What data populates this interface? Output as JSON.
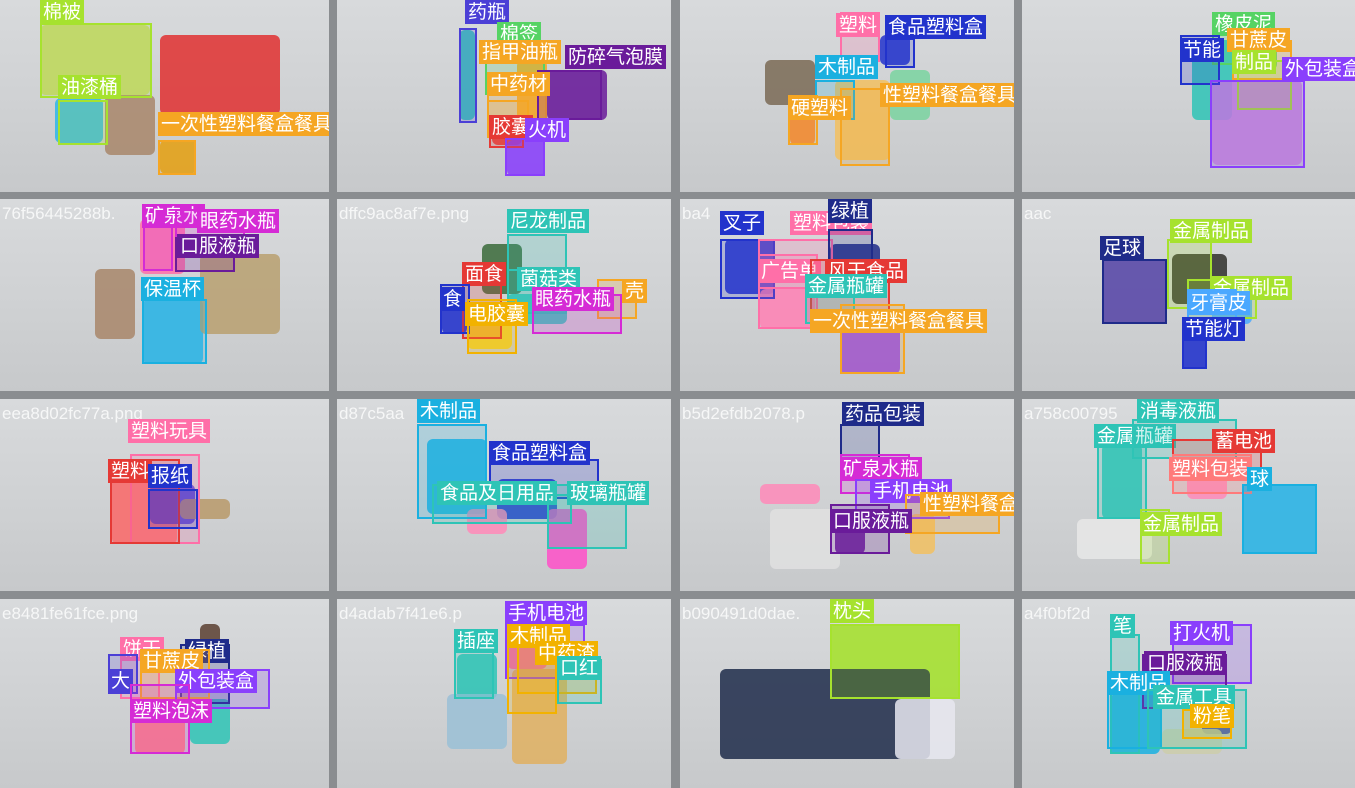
{
  "palette": {
    "yellow": "#f5d020",
    "lime": "#a6e22e",
    "green": "#56d364",
    "teal": "#2ec4b6",
    "cyan": "#1ab0e0",
    "sky": "#4aa8ff",
    "blue": "#2233cc",
    "navy": "#1f2b8a",
    "indigo": "#4b3fd6",
    "violet": "#8a3ffc",
    "purple": "#6a1b9a",
    "magenta": "#d52bd5",
    "pink": "#ff6fa8",
    "salmon": "#ff7a7a",
    "red": "#e53935",
    "orange": "#f5a623",
    "gold": "#f2b200"
  },
  "tiles": [
    {
      "filename": "",
      "detections": [
        {
          "label": "棉被",
          "color": "lime"
        },
        {
          "label": "油漆桶",
          "color": "lime"
        },
        {
          "label": "一次性塑料餐盒餐具",
          "color": "orange"
        }
      ]
    },
    {
      "filename": "",
      "detections": [
        {
          "label": "药瓶",
          "color": "indigo"
        },
        {
          "label": "棉签",
          "color": "green"
        },
        {
          "label": "指甲油瓶",
          "color": "orange"
        },
        {
          "label": "防碎气泡膜",
          "color": "purple"
        },
        {
          "label": "中药材",
          "color": "orange"
        },
        {
          "label": "胶囊",
          "color": "red"
        },
        {
          "label": "火机",
          "color": "violet"
        }
      ]
    },
    {
      "filename": "",
      "detections": [
        {
          "label": "塑料",
          "color": "pink"
        },
        {
          "label": "食品塑料盒",
          "color": "blue"
        },
        {
          "label": "木制品",
          "color": "cyan"
        },
        {
          "label": "性塑料餐盒餐具",
          "color": "orange"
        },
        {
          "label": "硬塑料",
          "color": "orange"
        }
      ]
    },
    {
      "filename": "",
      "detections": [
        {
          "label": "橡皮泥",
          "color": "green"
        },
        {
          "label": "甘蔗皮",
          "color": "orange"
        },
        {
          "label": "节能",
          "color": "blue"
        },
        {
          "label": "制品",
          "color": "lime"
        },
        {
          "label": "外包装盒",
          "color": "violet"
        }
      ]
    },
    {
      "filename": "76f56445288b.",
      "detections": [
        {
          "label": "矿泉水",
          "color": "magenta"
        },
        {
          "label": "眼药水瓶",
          "color": "magenta"
        },
        {
          "label": "口服液瓶",
          "color": "purple"
        },
        {
          "label": "保温杯",
          "color": "cyan"
        }
      ]
    },
    {
      "filename": "dffc9ac8af7e.png",
      "detections": [
        {
          "label": "尼龙制品",
          "color": "teal"
        },
        {
          "label": "面食",
          "color": "red"
        },
        {
          "label": "菌菇类",
          "color": "teal"
        },
        {
          "label": "壳",
          "color": "orange"
        },
        {
          "label": "食",
          "color": "blue"
        },
        {
          "label": "眼药水瓶",
          "color": "magenta"
        },
        {
          "label": "电胶囊",
          "color": "gold"
        }
      ]
    },
    {
      "filename": "ba4",
      "detections": [
        {
          "label": "叉子",
          "color": "blue"
        },
        {
          "label": "塑料包装",
          "color": "pink"
        },
        {
          "label": "绿植",
          "color": "navy"
        },
        {
          "label": "广告单",
          "color": "pink"
        },
        {
          "label": "风干食品",
          "color": "red"
        },
        {
          "label": "金属瓶罐",
          "color": "teal"
        },
        {
          "label": "一次性塑料餐盒餐具",
          "color": "orange"
        }
      ]
    },
    {
      "filename": "aac",
      "detections": [
        {
          "label": "足球",
          "color": "navy"
        },
        {
          "label": "金属制品",
          "color": "lime"
        },
        {
          "label": "金属制品",
          "color": "lime"
        },
        {
          "label": "牙膏皮",
          "color": "sky"
        },
        {
          "label": "节能灯",
          "color": "blue"
        }
      ]
    },
    {
      "filename": "eea8d02fc77a.png",
      "detections": [
        {
          "label": "塑料玩具",
          "color": "pink"
        },
        {
          "label": "塑料",
          "color": "red"
        },
        {
          "label": "报纸",
          "color": "blue"
        }
      ]
    },
    {
      "filename": "d87c5aa",
      "detections": [
        {
          "label": "木制品",
          "color": "cyan"
        },
        {
          "label": "食品塑料盒",
          "color": "blue"
        },
        {
          "label": "食品及日用品",
          "color": "teal"
        },
        {
          "label": "玻璃瓶罐",
          "color": "teal"
        }
      ]
    },
    {
      "filename": "b5d2efdb2078.p",
      "detections": [
        {
          "label": "药品包装",
          "color": "navy"
        },
        {
          "label": "矿泉水瓶",
          "color": "magenta"
        },
        {
          "label": "手机电池",
          "color": "violet"
        },
        {
          "label": "性塑料餐盒餐具",
          "color": "orange"
        },
        {
          "label": "口服液瓶",
          "color": "purple"
        }
      ]
    },
    {
      "filename": "a758c00795",
      "detections": [
        {
          "label": "金属瓶罐",
          "color": "teal"
        },
        {
          "label": "消毒液瓶",
          "color": "teal"
        },
        {
          "label": "蓄电池",
          "color": "red"
        },
        {
          "label": "塑料包装",
          "color": "salmon"
        },
        {
          "label": "球",
          "color": "cyan"
        },
        {
          "label": "金属制品",
          "color": "lime"
        }
      ]
    },
    {
      "filename": "e8481fe61fce.png",
      "detections": [
        {
          "label": "饼干",
          "color": "pink"
        },
        {
          "label": "绿植",
          "color": "navy"
        },
        {
          "label": "甘蔗皮",
          "color": "orange"
        },
        {
          "label": "外包装盒",
          "color": "violet"
        },
        {
          "label": "大",
          "color": "indigo"
        },
        {
          "label": "塑料泡沫",
          "color": "magenta"
        }
      ]
    },
    {
      "filename": "d4adab7f41e6.p",
      "detections": [
        {
          "label": "手机电池",
          "color": "violet"
        },
        {
          "label": "插座",
          "color": "teal"
        },
        {
          "label": "木制品",
          "color": "gold"
        },
        {
          "label": "中药渣",
          "color": "gold"
        },
        {
          "label": "口红",
          "color": "teal"
        }
      ]
    },
    {
      "filename": "b090491d0dae.",
      "detections": [
        {
          "label": "枕头",
          "color": "lime"
        }
      ]
    },
    {
      "filename": "a4f0bf2d",
      "detections": [
        {
          "label": "笔",
          "color": "teal"
        },
        {
          "label": "打火机",
          "color": "violet"
        },
        {
          "label": "口服液瓶",
          "color": "purple"
        },
        {
          "label": "木制品",
          "color": "cyan"
        },
        {
          "label": "金属工具",
          "color": "teal"
        },
        {
          "label": "粉笔",
          "color": "gold"
        }
      ]
    }
  ]
}
